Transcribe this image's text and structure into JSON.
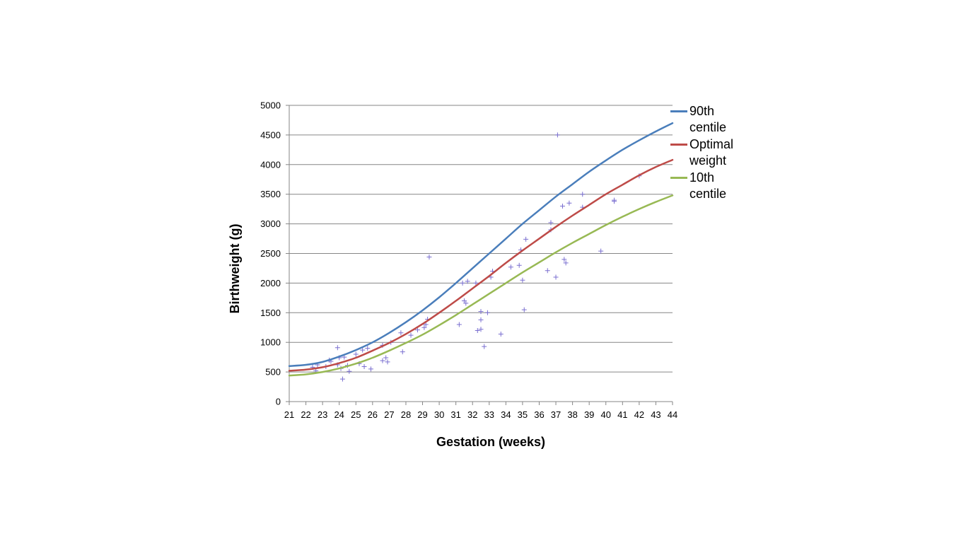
{
  "chart_data": {
    "type": "line",
    "title": "",
    "xlabel": "Gestation (weeks)",
    "ylabel": "Birthweight (g)",
    "xlim": [
      21,
      44
    ],
    "ylim": [
      0,
      5000
    ],
    "x_ticks": [
      "21",
      "22",
      "23",
      "24",
      "25",
      "26",
      "27",
      "28",
      "29",
      "30",
      "31",
      "32",
      "33",
      "34",
      "35",
      "36",
      "37",
      "38",
      "39",
      "40",
      "41",
      "42",
      "43",
      "44"
    ],
    "y_ticks": [
      "0",
      "500",
      "1000",
      "1500",
      "2000",
      "2500",
      "3000",
      "3500",
      "4000",
      "4500",
      "5000"
    ],
    "grid": "horizontal",
    "legend_position": "right",
    "series": [
      {
        "name": "90th centile",
        "color": "#4a7ebb",
        "x": [
          21,
          22,
          23,
          24,
          25,
          26,
          27,
          28,
          29,
          30,
          31,
          32,
          33,
          34,
          35,
          36,
          37,
          38,
          39,
          40,
          41,
          42,
          43,
          44
        ],
        "y": [
          600,
          620,
          670,
          760,
          870,
          1000,
          1160,
          1340,
          1540,
          1760,
          2000,
          2250,
          2500,
          2750,
          3000,
          3230,
          3460,
          3670,
          3880,
          4070,
          4250,
          4410,
          4560,
          4700
        ]
      },
      {
        "name": "Optimal weight",
        "color": "#be4b48",
        "x": [
          21,
          22,
          23,
          24,
          25,
          26,
          27,
          28,
          29,
          30,
          31,
          32,
          33,
          34,
          35,
          36,
          37,
          38,
          39,
          40,
          41,
          42,
          43,
          44
        ],
        "y": [
          520,
          540,
          580,
          650,
          740,
          860,
          990,
          1140,
          1310,
          1500,
          1700,
          1910,
          2120,
          2340,
          2550,
          2750,
          2950,
          3140,
          3320,
          3500,
          3660,
          3820,
          3960,
          4080
        ]
      },
      {
        "name": "10th centile",
        "color": "#98b954",
        "x": [
          21,
          22,
          23,
          24,
          25,
          26,
          27,
          28,
          29,
          30,
          31,
          32,
          33,
          34,
          35,
          36,
          37,
          38,
          39,
          40,
          41,
          42,
          43,
          44
        ],
        "y": [
          440,
          460,
          500,
          560,
          640,
          740,
          860,
          990,
          1130,
          1290,
          1460,
          1640,
          1820,
          2000,
          2180,
          2350,
          2520,
          2680,
          2830,
          2980,
          3120,
          3250,
          3370,
          3480
        ]
      }
    ],
    "scatter": {
      "color": "#7a6fd0",
      "marker": "+",
      "points": [
        [
          22.4,
          580
        ],
        [
          22.6,
          520
        ],
        [
          22.7,
          620
        ],
        [
          23.2,
          590
        ],
        [
          23.4,
          700
        ],
        [
          23.5,
          680
        ],
        [
          23.9,
          910
        ],
        [
          23.9,
          620
        ],
        [
          24.0,
          740
        ],
        [
          24.1,
          560
        ],
        [
          24.2,
          380
        ],
        [
          24.3,
          750
        ],
        [
          24.5,
          610
        ],
        [
          24.6,
          510
        ],
        [
          25.0,
          800
        ],
        [
          25.2,
          640
        ],
        [
          25.4,
          870
        ],
        [
          25.5,
          590
        ],
        [
          25.7,
          900
        ],
        [
          25.9,
          550
        ],
        [
          26.6,
          950
        ],
        [
          26.6,
          690
        ],
        [
          26.8,
          740
        ],
        [
          26.9,
          670
        ],
        [
          27.1,
          1000
        ],
        [
          27.7,
          1160
        ],
        [
          27.8,
          840
        ],
        [
          28.3,
          1120
        ],
        [
          28.7,
          1210
        ],
        [
          29.1,
          1250
        ],
        [
          29.2,
          1300
        ],
        [
          29.3,
          1390
        ],
        [
          29.4,
          2440
        ],
        [
          31.2,
          1300
        ],
        [
          31.4,
          2000
        ],
        [
          31.5,
          1700
        ],
        [
          31.6,
          1660
        ],
        [
          31.7,
          2030
        ],
        [
          32.2,
          2000
        ],
        [
          32.3,
          1200
        ],
        [
          32.5,
          1520
        ],
        [
          32.5,
          1380
        ],
        [
          32.5,
          1220
        ],
        [
          32.7,
          930
        ],
        [
          32.9,
          1500
        ],
        [
          33.1,
          2100
        ],
        [
          33.2,
          2200
        ],
        [
          33.7,
          1140
        ],
        [
          34.3,
          2270
        ],
        [
          34.8,
          2300
        ],
        [
          34.9,
          2560
        ],
        [
          35.0,
          2050
        ],
        [
          35.1,
          1550
        ],
        [
          35.2,
          2740
        ],
        [
          36.5,
          2210
        ],
        [
          36.7,
          3020
        ],
        [
          36.7,
          2900
        ],
        [
          37.0,
          2100
        ],
        [
          37.1,
          4500
        ],
        [
          37.4,
          3300
        ],
        [
          37.5,
          2400
        ],
        [
          37.6,
          2340
        ],
        [
          37.8,
          3350
        ],
        [
          38.6,
          3500
        ],
        [
          38.6,
          3280
        ],
        [
          39.7,
          2540
        ],
        [
          40.5,
          3400
        ],
        [
          40.5,
          3380
        ],
        [
          42.0,
          3810
        ]
      ]
    }
  }
}
